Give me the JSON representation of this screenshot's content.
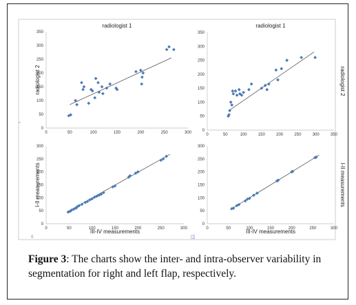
{
  "caption": {
    "label": "Figure 3",
    "text": ": The charts show the inter- and intra-observer variability in segmentation for right and left flap, respectively."
  },
  "colors": {
    "marker": "#4a7ab8",
    "trendline": "#555555",
    "frame": "#c0c0c0"
  },
  "chart_data": [
    {
      "type": "scatter",
      "title": "radiologist 1",
      "xlabel": "",
      "ylabel": "radiologist 2",
      "xlim": [
        0,
        300
      ],
      "ylim": [
        0,
        350
      ],
      "xticks": [
        0,
        50,
        100,
        150,
        200,
        250,
        300
      ],
      "yticks": [
        0,
        50,
        100,
        150,
        200,
        250,
        300,
        350
      ],
      "trendline": [
        [
          50,
          85
        ],
        [
          265,
          255
        ]
      ],
      "legend_glyph": "▫",
      "points": [
        [
          48,
          45
        ],
        [
          52,
          48
        ],
        [
          62,
          100
        ],
        [
          65,
          85
        ],
        [
          75,
          165
        ],
        [
          78,
          140
        ],
        [
          80,
          150
        ],
        [
          90,
          90
        ],
        [
          95,
          140
        ],
        [
          98,
          135
        ],
        [
          103,
          110
        ],
        [
          105,
          180
        ],
        [
          110,
          165
        ],
        [
          112,
          130
        ],
        [
          118,
          150
        ],
        [
          120,
          125
        ],
        [
          128,
          145
        ],
        [
          135,
          160
        ],
        [
          148,
          145
        ],
        [
          150,
          140
        ],
        [
          190,
          205
        ],
        [
          200,
          210
        ],
        [
          202,
          160
        ],
        [
          203,
          185
        ],
        [
          205,
          200
        ],
        [
          255,
          285
        ],
        [
          260,
          295
        ],
        [
          270,
          285
        ]
      ]
    },
    {
      "type": "scatter",
      "title": "radiologist 1",
      "xlabel": "",
      "ylabel": "radiologist 2",
      "xlim": [
        0,
        350
      ],
      "ylim": [
        0,
        350
      ],
      "xticks": [
        0,
        50,
        100,
        150,
        200,
        250,
        300,
        350
      ],
      "yticks": [
        0,
        50,
        100,
        150,
        200,
        250,
        300,
        350
      ],
      "trendline": [
        [
          60,
          70
        ],
        [
          295,
          280
        ]
      ],
      "points": [
        [
          58,
          50
        ],
        [
          60,
          55
        ],
        [
          62,
          70
        ],
        [
          65,
          100
        ],
        [
          68,
          90
        ],
        [
          70,
          140
        ],
        [
          72,
          130
        ],
        [
          78,
          140
        ],
        [
          82,
          125
        ],
        [
          88,
          145
        ],
        [
          90,
          130
        ],
        [
          95,
          125
        ],
        [
          100,
          135
        ],
        [
          115,
          145
        ],
        [
          122,
          165
        ],
        [
          150,
          150
        ],
        [
          160,
          160
        ],
        [
          165,
          145
        ],
        [
          170,
          165
        ],
        [
          190,
          215
        ],
        [
          195,
          180
        ],
        [
          205,
          220
        ],
        [
          220,
          250
        ],
        [
          260,
          260
        ],
        [
          298,
          260
        ]
      ]
    },
    {
      "type": "scatter",
      "title": "",
      "xlabel": "III-IV measurements",
      "ylabel": "I-II measurements",
      "xlim": [
        0,
        300
      ],
      "ylim": [
        0,
        300
      ],
      "xticks": [
        0,
        50,
        100,
        150,
        200,
        250,
        300
      ],
      "yticks": [
        0,
        50,
        100,
        150,
        200,
        250,
        300
      ],
      "trendline": [
        [
          45,
          45
        ],
        [
          270,
          268
        ]
      ],
      "legend_glyph": "◊",
      "points": [
        [
          48,
          45
        ],
        [
          52,
          48
        ],
        [
          55,
          52
        ],
        [
          60,
          56
        ],
        [
          65,
          60
        ],
        [
          68,
          66
        ],
        [
          72,
          70
        ],
        [
          78,
          75
        ],
        [
          85,
          82
        ],
        [
          90,
          86
        ],
        [
          95,
          92
        ],
        [
          100,
          96
        ],
        [
          105,
          102
        ],
        [
          110,
          106
        ],
        [
          115,
          110
        ],
        [
          120,
          114
        ],
        [
          125,
          120
        ],
        [
          145,
          142
        ],
        [
          150,
          146
        ],
        [
          180,
          180
        ],
        [
          183,
          185
        ],
        [
          195,
          195
        ],
        [
          200,
          200
        ],
        [
          250,
          245
        ],
        [
          255,
          250
        ],
        [
          262,
          260
        ]
      ]
    },
    {
      "type": "scatter",
      "title": "",
      "xlabel": "III-IV measurements",
      "ylabel": "I-II measurements",
      "xlim": [
        0,
        300
      ],
      "ylim": [
        0,
        300
      ],
      "xticks": [
        0,
        50,
        100,
        150,
        200,
        250,
        300
      ],
      "yticks": [
        0,
        50,
        100,
        150,
        200,
        250,
        300
      ],
      "trendline": [
        [
          55,
          55
        ],
        [
          265,
          265
        ]
      ],
      "legend_glyph": "◫",
      "points": [
        [
          58,
          58
        ],
        [
          62,
          60
        ],
        [
          70,
          70
        ],
        [
          75,
          74
        ],
        [
          90,
          88
        ],
        [
          95,
          95
        ],
        [
          100,
          98
        ],
        [
          110,
          110
        ],
        [
          118,
          118
        ],
        [
          165,
          165
        ],
        [
          168,
          168
        ],
        [
          200,
          200
        ],
        [
          202,
          202
        ],
        [
          255,
          255
        ],
        [
          258,
          257
        ]
      ]
    }
  ]
}
